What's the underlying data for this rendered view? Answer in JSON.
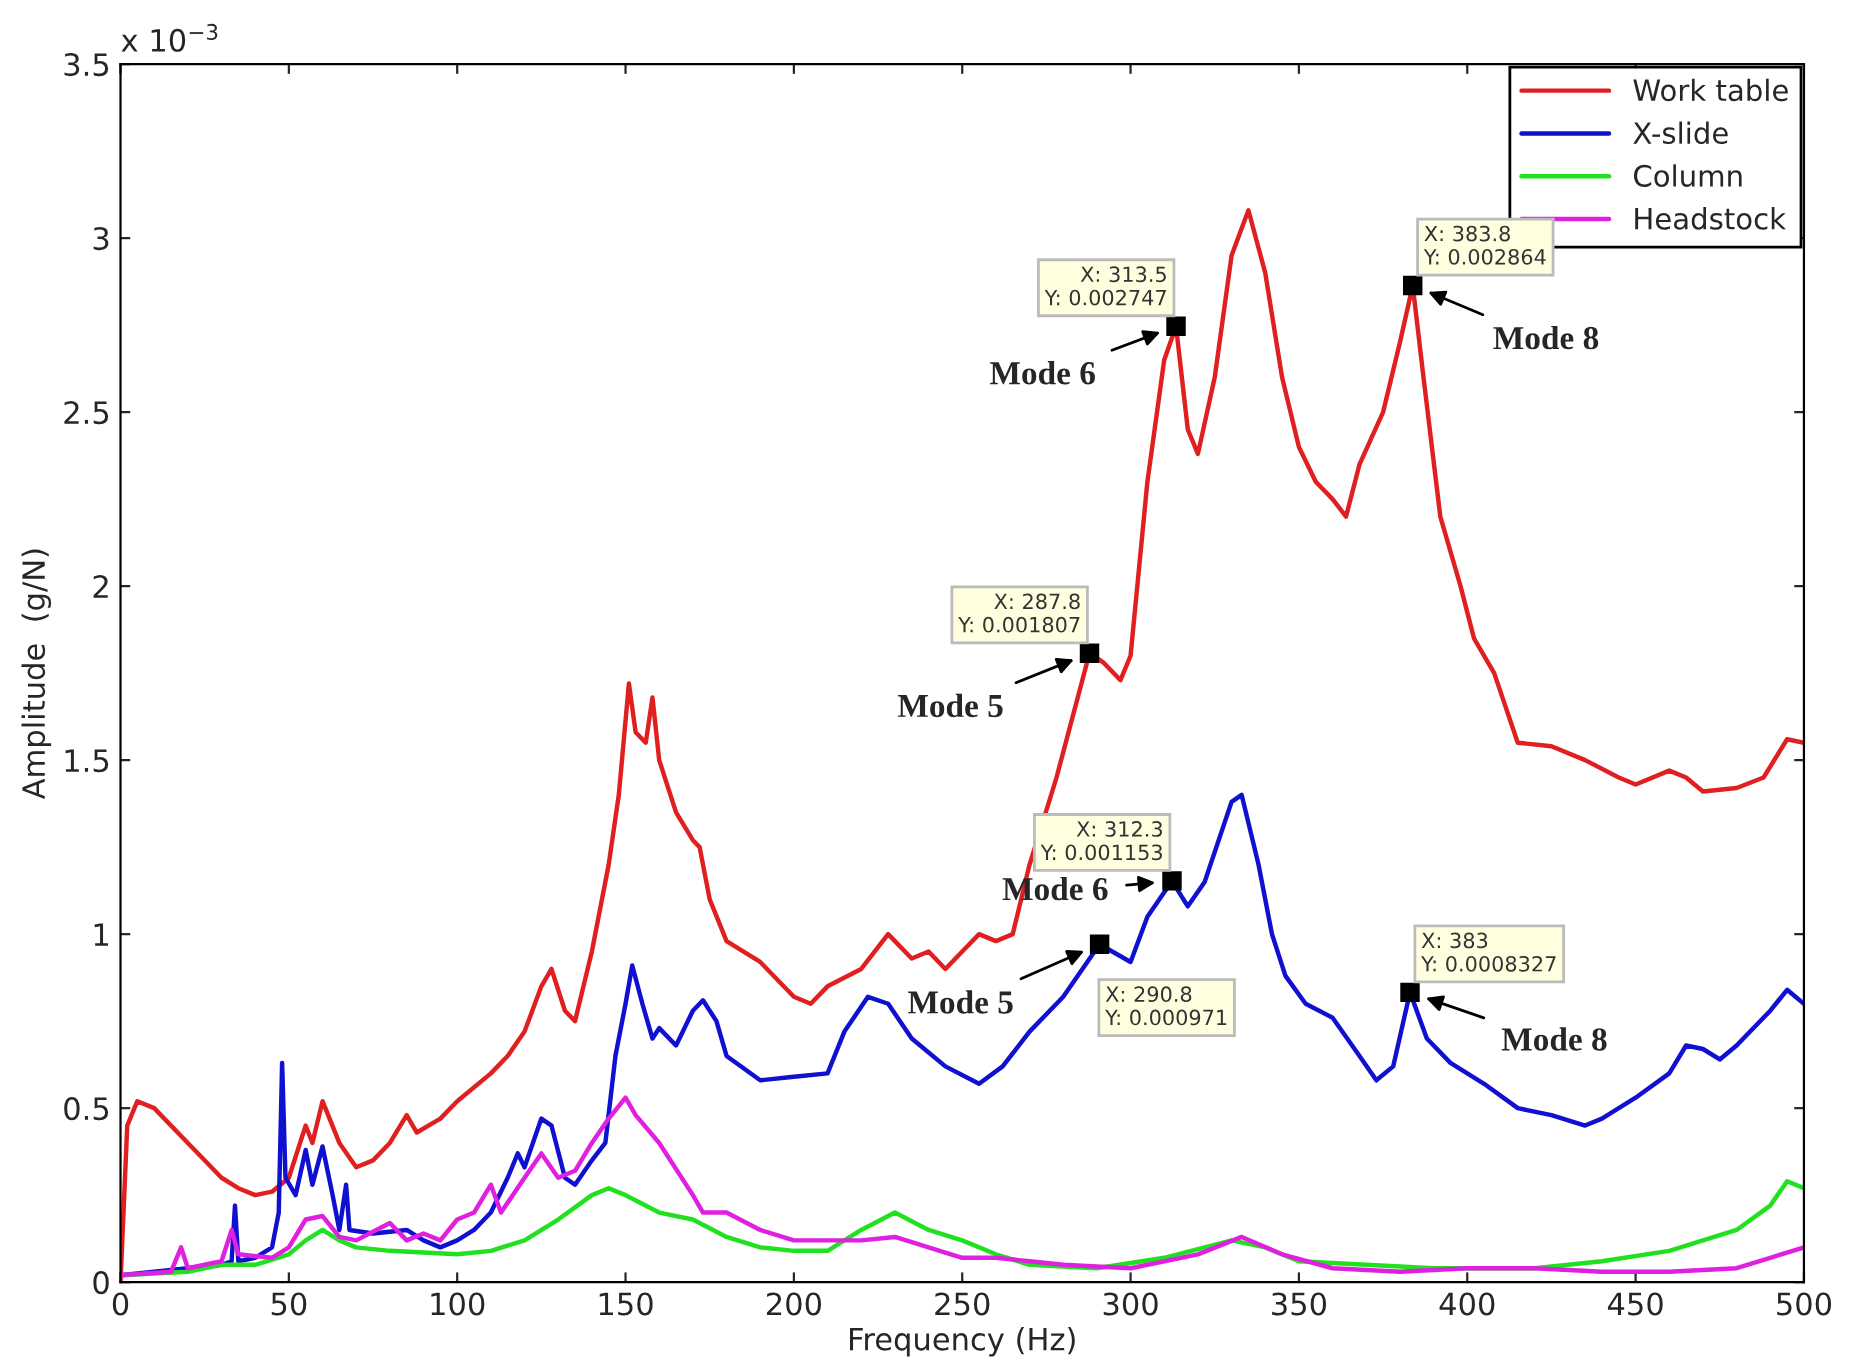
{
  "chart_data": {
    "type": "line",
    "xlabel": "Frequency (Hz)",
    "ylabel": "Amplitude  (g/N)",
    "xlim": [
      0,
      500
    ],
    "xticks": [
      0,
      50,
      100,
      150,
      200,
      250,
      300,
      350,
      400,
      450,
      500
    ],
    "ylim": [
      0,
      3.5
    ],
    "yticks": [
      0,
      0.5,
      1,
      1.5,
      2,
      2.5,
      3,
      3.5
    ],
    "grid": false,
    "legend": "top right",
    "line_style": "solid",
    "series": [
      {
        "name": "Work table",
        "color": "#e02020",
        "x": [
          0,
          2,
          5,
          10,
          20,
          30,
          35,
          40,
          45,
          50,
          55,
          57,
          60,
          65,
          70,
          75,
          80,
          85,
          88,
          95,
          100,
          110,
          115,
          120,
          125,
          128,
          132,
          135,
          140,
          145,
          148,
          151,
          153,
          156,
          158,
          160,
          165,
          170,
          172,
          175,
          180,
          190,
          200,
          205,
          210,
          220,
          228,
          235,
          240,
          245,
          250,
          255,
          260,
          265,
          270,
          278,
          287.8,
          292,
          297,
          300,
          305,
          310,
          313.5,
          317,
          320,
          325,
          330,
          335,
          340,
          345,
          350,
          355,
          360,
          364,
          368,
          375,
          380,
          383.8,
          387,
          392,
          398,
          402,
          408,
          415,
          425,
          435,
          445,
          450,
          460,
          465,
          470,
          480,
          488,
          495,
          500
        ],
        "values": [
          0,
          0.45,
          0.52,
          0.5,
          0.4,
          0.3,
          0.27,
          0.25,
          0.26,
          0.3,
          0.45,
          0.4,
          0.52,
          0.4,
          0.33,
          0.35,
          0.4,
          0.48,
          0.43,
          0.47,
          0.52,
          0.6,
          0.65,
          0.72,
          0.85,
          0.9,
          0.78,
          0.75,
          0.95,
          1.2,
          1.4,
          1.72,
          1.58,
          1.55,
          1.68,
          1.5,
          1.35,
          1.27,
          1.25,
          1.1,
          0.98,
          0.92,
          0.82,
          0.8,
          0.85,
          0.9,
          1.0,
          0.93,
          0.95,
          0.9,
          0.95,
          1.0,
          0.98,
          1.0,
          1.2,
          1.45,
          1.807,
          1.78,
          1.73,
          1.8,
          2.3,
          2.65,
          2.747,
          2.45,
          2.38,
          2.6,
          2.95,
          3.08,
          2.9,
          2.6,
          2.4,
          2.3,
          2.25,
          2.2,
          2.35,
          2.5,
          2.7,
          2.864,
          2.6,
          2.2,
          2.0,
          1.85,
          1.75,
          1.55,
          1.54,
          1.5,
          1.45,
          1.43,
          1.47,
          1.45,
          1.41,
          1.42,
          1.45,
          1.56,
          1.55
        ]
      },
      {
        "name": "X-slide",
        "color": "#1010d0",
        "x": [
          0,
          10,
          20,
          30,
          33,
          34,
          35,
          40,
          45,
          47,
          48,
          49,
          52,
          55,
          57,
          60,
          63,
          65,
          67,
          68,
          75,
          85,
          90,
          95,
          100,
          105,
          110,
          115,
          118,
          120,
          125,
          128,
          132,
          135,
          140,
          144,
          147,
          150,
          152,
          155,
          158,
          160,
          165,
          170,
          173,
          177,
          180,
          190,
          200,
          210,
          215,
          222,
          228,
          235,
          245,
          255,
          262,
          270,
          280,
          290.8,
          300,
          305,
          312.3,
          317,
          322,
          330,
          333,
          338,
          342,
          346,
          352,
          360,
          368,
          373,
          378,
          383,
          388,
          395,
          405,
          415,
          425,
          435,
          440,
          450,
          460,
          465,
          470,
          475,
          480,
          490,
          495,
          500
        ],
        "values": [
          0.02,
          0.03,
          0.04,
          0.05,
          0.06,
          0.22,
          0.06,
          0.07,
          0.1,
          0.2,
          0.63,
          0.3,
          0.25,
          0.38,
          0.28,
          0.39,
          0.25,
          0.15,
          0.28,
          0.15,
          0.14,
          0.15,
          0.12,
          0.1,
          0.12,
          0.15,
          0.2,
          0.3,
          0.37,
          0.33,
          0.47,
          0.45,
          0.3,
          0.28,
          0.35,
          0.4,
          0.65,
          0.8,
          0.91,
          0.8,
          0.7,
          0.73,
          0.68,
          0.78,
          0.81,
          0.75,
          0.65,
          0.58,
          0.59,
          0.6,
          0.72,
          0.82,
          0.8,
          0.7,
          0.62,
          0.57,
          0.62,
          0.72,
          0.82,
          0.971,
          0.92,
          1.05,
          1.153,
          1.08,
          1.15,
          1.38,
          1.4,
          1.2,
          1.0,
          0.88,
          0.8,
          0.76,
          0.65,
          0.58,
          0.62,
          0.833,
          0.7,
          0.63,
          0.57,
          0.5,
          0.48,
          0.45,
          0.47,
          0.53,
          0.6,
          0.68,
          0.67,
          0.64,
          0.68,
          0.78,
          0.84,
          0.8
        ]
      },
      {
        "name": "Column",
        "color": "#20e020",
        "x": [
          0,
          20,
          30,
          40,
          50,
          55,
          60,
          65,
          70,
          80,
          100,
          110,
          120,
          130,
          140,
          145,
          150,
          160,
          170,
          180,
          190,
          200,
          210,
          220,
          230,
          240,
          250,
          260,
          270,
          290,
          310,
          330,
          340,
          350,
          370,
          390,
          400,
          420,
          440,
          460,
          480,
          490,
          495,
          500
        ],
        "values": [
          0.02,
          0.03,
          0.05,
          0.05,
          0.08,
          0.12,
          0.15,
          0.12,
          0.1,
          0.09,
          0.08,
          0.09,
          0.12,
          0.18,
          0.25,
          0.27,
          0.25,
          0.2,
          0.18,
          0.13,
          0.1,
          0.09,
          0.09,
          0.15,
          0.2,
          0.15,
          0.12,
          0.08,
          0.05,
          0.04,
          0.07,
          0.12,
          0.1,
          0.06,
          0.05,
          0.04,
          0.04,
          0.04,
          0.06,
          0.09,
          0.15,
          0.22,
          0.29,
          0.27
        ]
      },
      {
        "name": "Headstock",
        "color": "#e020e0",
        "x": [
          0,
          15,
          18,
          20,
          30,
          33,
          35,
          45,
          50,
          55,
          60,
          65,
          70,
          80,
          85,
          90,
          95,
          100,
          105,
          110,
          113,
          120,
          125,
          130,
          135,
          140,
          145,
          150,
          153,
          160,
          170,
          173,
          180,
          190,
          200,
          210,
          220,
          230,
          240,
          250,
          260,
          270,
          280,
          300,
          320,
          333,
          345,
          360,
          380,
          400,
          420,
          440,
          460,
          480,
          490,
          500
        ],
        "values": [
          0.02,
          0.03,
          0.1,
          0.04,
          0.06,
          0.15,
          0.08,
          0.07,
          0.1,
          0.18,
          0.19,
          0.13,
          0.12,
          0.17,
          0.12,
          0.14,
          0.12,
          0.18,
          0.2,
          0.28,
          0.2,
          0.3,
          0.37,
          0.3,
          0.32,
          0.4,
          0.47,
          0.53,
          0.48,
          0.4,
          0.25,
          0.2,
          0.2,
          0.15,
          0.12,
          0.12,
          0.12,
          0.13,
          0.1,
          0.07,
          0.07,
          0.06,
          0.05,
          0.04,
          0.08,
          0.13,
          0.08,
          0.04,
          0.03,
          0.04,
          0.04,
          0.03,
          0.03,
          0.04,
          0.07,
          0.1
        ]
      }
    ],
    "annotations": [
      {
        "text": "X: 313.5\nY: 0.002747",
        "x": 313.5,
        "y": 2.747
      },
      {
        "text": "Mode 6",
        "x": 313.5,
        "y": 2.747
      },
      {
        "text": "X: 287.8\nY: 0.001807",
        "x": 287.8,
        "y": 1.807
      },
      {
        "text": "Mode 5",
        "x": 287.8,
        "y": 1.807
      },
      {
        "text": "X: 383.8\nY: 0.002864",
        "x": 383.8,
        "y": 2.864
      },
      {
        "text": "Mode 8",
        "x": 383.8,
        "y": 2.864
      },
      {
        "text": "X: 290.8\nY: 0.000971",
        "x": 290.8,
        "y": 0.971
      },
      {
        "text": "Mode 5",
        "x": 290.8,
        "y": 0.971
      },
      {
        "text": "X: 312.3\nY: 0.001153",
        "x": 312.3,
        "y": 1.153
      },
      {
        "text": "Mode 6",
        "x": 312.3,
        "y": 1.153
      },
      {
        "text": "X: 383\nY: 0.0008327",
        "x": 383,
        "y": 0.8327
      },
      {
        "text": "Mode 8",
        "x": 383,
        "y": 0.8327
      },
      "x 10$^{−3}$"
    ]
  }
}
